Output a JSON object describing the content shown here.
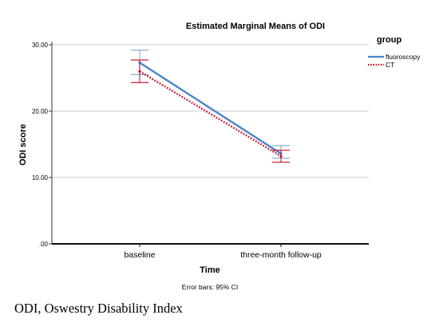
{
  "chart_data": {
    "type": "line",
    "title": "Estimated Marginal Means of ODI",
    "xlabel": "Time",
    "ylabel": "ODI score",
    "categories": [
      "baseline",
      "three-month follow-up"
    ],
    "yticks": [
      ".00",
      "10.00",
      "20.00",
      "30.00"
    ],
    "ylim": [
      0,
      30
    ],
    "grid": true,
    "legend_title": "group",
    "legend_position": "top-right",
    "series": [
      {
        "name": "fluoroscopy",
        "color": "#4a86c8",
        "line_style": "solid",
        "values": [
          27.3,
          13.6
        ],
        "ci_low": [
          25.5,
          12.9
        ],
        "ci_high": [
          29.2,
          14.8
        ]
      },
      {
        "name": "CT",
        "color": "#c8102e",
        "line_style": "dotted",
        "values": [
          26.0,
          13.2
        ],
        "ci_low": [
          24.3,
          12.3
        ],
        "ci_high": [
          27.7,
          14.1
        ]
      }
    ],
    "note": "Error bars: 95% CI"
  },
  "footnote": "ODI, Oswestry Disability Index"
}
